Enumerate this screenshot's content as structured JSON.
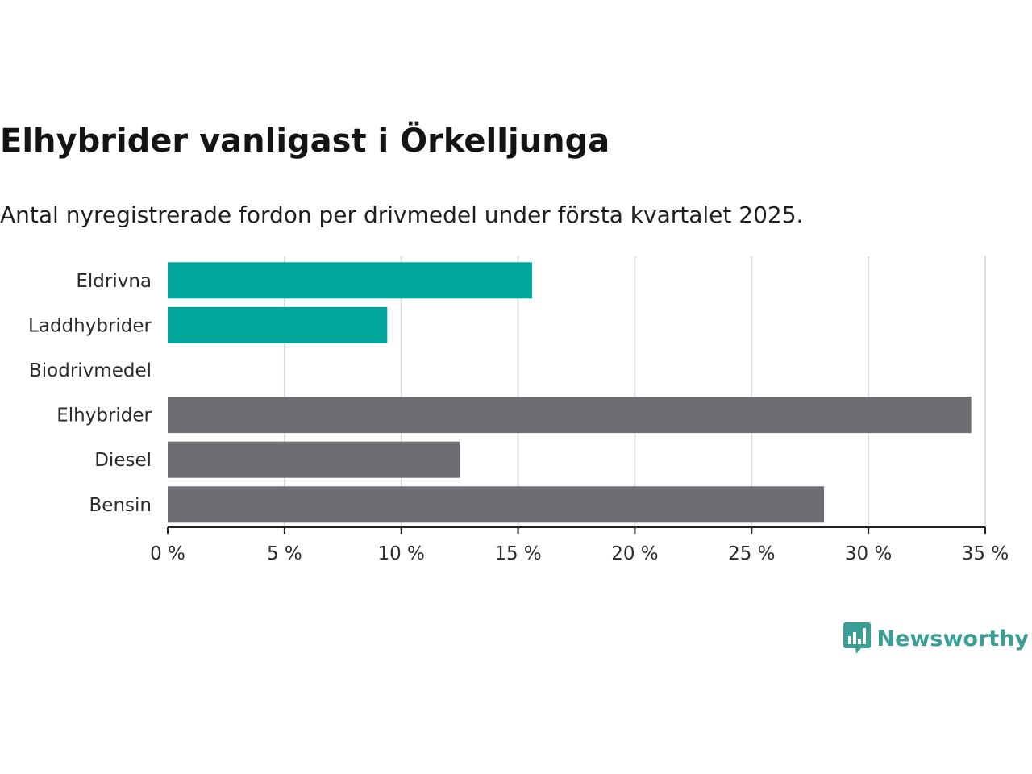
{
  "chart_data": {
    "type": "bar",
    "orientation": "horizontal",
    "title": "Elhybrider vanligast i Örkelljunga",
    "subtitle": "Antal nyregistrerade fordon per drivmedel under första kvartalet 2025.",
    "categories": [
      "Eldrivna",
      "Laddhybrider",
      "Biodrivmedel",
      "Elhybrider",
      "Diesel",
      "Bensin"
    ],
    "values": [
      15.6,
      9.4,
      0,
      34.4,
      12.5,
      28.1
    ],
    "colors": [
      "#00a59b",
      "#00a59b",
      "#00a59b",
      "#6e6d73",
      "#6e6d73",
      "#6e6d73"
    ],
    "xlim": [
      0,
      35
    ],
    "xticks": [
      0,
      5,
      10,
      15,
      20,
      25,
      30,
      35
    ],
    "tick_labels": [
      "0 %",
      "5 %",
      "10 %",
      "15 %",
      "20 %",
      "25 %",
      "30 %",
      "35 %"
    ],
    "grid": true,
    "legend": "none"
  },
  "brand": {
    "name": "Newsworthy",
    "icon": "bar-chart-speech-bubble-icon",
    "color": "#3a9e96"
  }
}
